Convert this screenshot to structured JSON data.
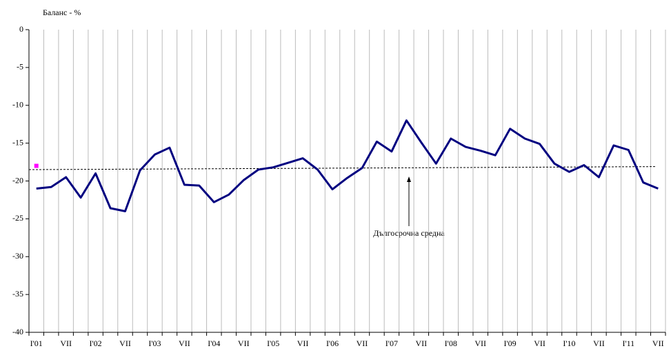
{
  "chart_data": {
    "type": "line",
    "y_axis_label": "Баланс - %",
    "annotation": "Дългосрочна средна",
    "categories": [
      "I'01",
      null,
      "VII",
      null,
      "I'02",
      null,
      "VII",
      null,
      "I'03",
      null,
      "VII",
      null,
      "I'04",
      null,
      "VII",
      null,
      "I'05",
      null,
      "VII",
      null,
      "I'06",
      null,
      "VII",
      null,
      "I'07",
      null,
      "VII",
      null,
      "I'08",
      null,
      "VII",
      null,
      "I'09",
      null,
      "VII",
      null,
      "I'10",
      null,
      "VII",
      null,
      "I'11",
      null,
      "VII"
    ],
    "series": [
      {
        "color": "#000080",
        "values": [
          -21.0,
          -20.8,
          -19.5,
          -22.2,
          -19.0,
          -23.6,
          -24.0,
          -18.6,
          -16.5,
          -15.6,
          -20.5,
          -20.6,
          -22.8,
          -21.8,
          -19.9,
          -18.5,
          -18.2,
          -17.6,
          -17.0,
          -18.5,
          -21.1,
          -19.6,
          -18.3,
          -14.8,
          -16.1,
          -12.0,
          -14.9,
          -17.7,
          -14.4,
          -15.5,
          -16.0,
          -16.6,
          -13.1,
          -14.4,
          -15.1,
          -17.7,
          -18.8,
          -17.9,
          -19.5,
          -15.3,
          -15.9,
          -20.2,
          -21.0
        ]
      },
      {
        "color": "#ff00ff",
        "style": "marker",
        "values": [
          -18.0,
          null,
          null,
          null,
          null,
          null,
          null,
          null,
          null,
          null,
          null,
          null,
          null,
          null,
          null,
          null,
          null,
          null,
          null,
          null,
          null,
          null,
          null,
          null,
          null,
          null,
          null,
          null,
          null,
          null,
          null,
          null,
          null,
          null,
          null,
          null,
          null,
          null,
          null,
          null,
          null,
          null,
          null
        ]
      }
    ],
    "reference_line": {
      "start": -18.5,
      "end": -18.1,
      "color": "#000000",
      "style": "dashed"
    },
    "ylim": [
      -40,
      0
    ],
    "yticks": [
      0,
      -5,
      -10,
      -15,
      -20,
      -25,
      -30,
      -35,
      -40
    ],
    "vertical_grid": true
  }
}
